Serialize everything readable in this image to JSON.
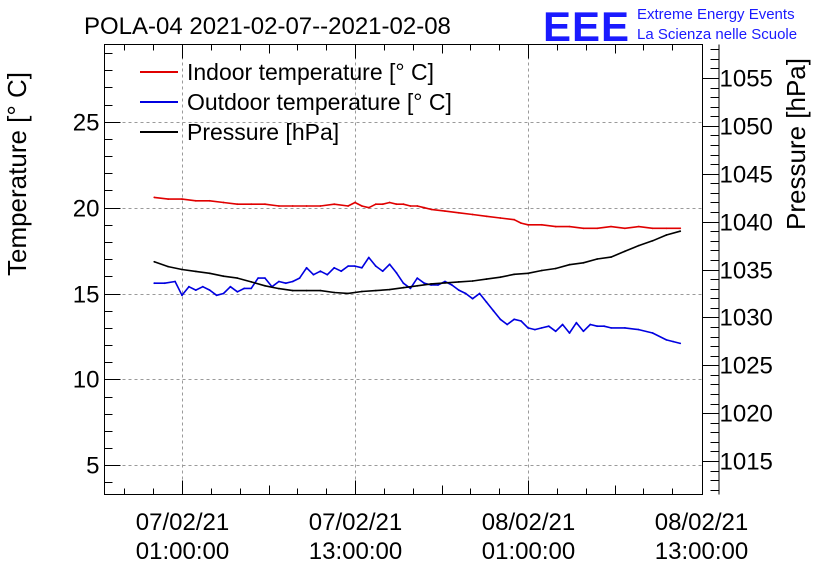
{
  "chart_data": {
    "type": "line",
    "title": "POLA-04 2021-02-07--2021-02-08",
    "logo": {
      "mark": "EEE",
      "line1": "Extreme Energy Events",
      "line2": "La Scienza nelle Scuole",
      "color": "#1a1aff"
    },
    "xlabel": "",
    "ylabel": "Temperature [° C]",
    "y2label": "Pressure [hPa]",
    "xlim": [
      -0.25,
      1.48
    ],
    "ylim": [
      3.3,
      29.5
    ],
    "y2lim": [
      1011.5,
      1058.5
    ],
    "x_ticks": [
      {
        "x": 0.0,
        "label1": "07/02/21",
        "label2": "01:00:00"
      },
      {
        "x": 0.5,
        "label1": "07/02/21",
        "label2": "13:00:00"
      },
      {
        "x": 1.0,
        "label1": "08/02/21",
        "label2": "01:00:00"
      },
      {
        "x": 1.5,
        "label1": "08/02/21",
        "label2": "13:00:00"
      }
    ],
    "y_ticks": [
      {
        "value": 5,
        "label": "5"
      },
      {
        "value": 10,
        "label": "10"
      },
      {
        "value": 15,
        "label": "15"
      },
      {
        "value": 20,
        "label": "20"
      },
      {
        "value": 25,
        "label": "25"
      }
    ],
    "y2_ticks": [
      {
        "value": 1015,
        "label": "1015"
      },
      {
        "value": 1020,
        "label": "1020"
      },
      {
        "value": 1025,
        "label": "1025"
      },
      {
        "value": 1030,
        "label": "1030"
      },
      {
        "value": 1035,
        "label": "1035"
      },
      {
        "value": 1040,
        "label": "1040"
      },
      {
        "value": 1045,
        "label": "1045"
      },
      {
        "value": 1050,
        "label": "1050"
      },
      {
        "value": 1055,
        "label": "1055"
      }
    ],
    "grid": true,
    "legend_position": "top-left",
    "series": [
      {
        "name": "Indoor temperature [° C]",
        "axis": "left",
        "color": "#e00000",
        "x": [
          -0.08,
          -0.04,
          0.0,
          0.04,
          0.08,
          0.12,
          0.16,
          0.2,
          0.24,
          0.28,
          0.32,
          0.36,
          0.4,
          0.44,
          0.48,
          0.5,
          0.52,
          0.54,
          0.56,
          0.58,
          0.6,
          0.62,
          0.64,
          0.66,
          0.68,
          0.7,
          0.72,
          0.76,
          0.8,
          0.84,
          0.88,
          0.92,
          0.96,
          0.98,
          1.0,
          1.04,
          1.08,
          1.12,
          1.16,
          1.2,
          1.24,
          1.28,
          1.32,
          1.36,
          1.4,
          1.44
        ],
        "values": [
          20.6,
          20.5,
          20.5,
          20.4,
          20.4,
          20.3,
          20.2,
          20.2,
          20.2,
          20.1,
          20.1,
          20.1,
          20.1,
          20.2,
          20.1,
          20.3,
          20.1,
          20.0,
          20.2,
          20.2,
          20.3,
          20.2,
          20.2,
          20.1,
          20.1,
          20.0,
          19.9,
          19.8,
          19.7,
          19.6,
          19.5,
          19.4,
          19.3,
          19.1,
          19.0,
          19.0,
          18.9,
          18.9,
          18.8,
          18.8,
          18.9,
          18.8,
          18.9,
          18.8,
          18.8,
          18.8
        ]
      },
      {
        "name": "Outdoor temperature [° C]",
        "axis": "left",
        "color": "#0000e0",
        "x": [
          -0.08,
          -0.05,
          -0.02,
          0.0,
          0.02,
          0.04,
          0.06,
          0.08,
          0.1,
          0.12,
          0.14,
          0.16,
          0.18,
          0.2,
          0.22,
          0.24,
          0.26,
          0.28,
          0.3,
          0.32,
          0.34,
          0.36,
          0.38,
          0.4,
          0.42,
          0.44,
          0.46,
          0.48,
          0.5,
          0.52,
          0.54,
          0.56,
          0.58,
          0.6,
          0.62,
          0.64,
          0.66,
          0.68,
          0.7,
          0.72,
          0.74,
          0.76,
          0.78,
          0.8,
          0.82,
          0.84,
          0.86,
          0.88,
          0.9,
          0.92,
          0.94,
          0.96,
          0.98,
          1.0,
          1.02,
          1.04,
          1.06,
          1.08,
          1.1,
          1.12,
          1.14,
          1.16,
          1.18,
          1.2,
          1.22,
          1.24,
          1.28,
          1.32,
          1.36,
          1.4,
          1.42,
          1.44
        ],
        "values": [
          15.6,
          15.6,
          15.7,
          14.9,
          15.4,
          15.2,
          15.4,
          15.2,
          14.9,
          15.0,
          15.4,
          15.1,
          15.3,
          15.3,
          15.9,
          15.9,
          15.4,
          15.7,
          15.6,
          15.7,
          15.9,
          16.5,
          16.1,
          16.3,
          16.1,
          16.5,
          16.3,
          16.6,
          16.6,
          16.5,
          17.1,
          16.6,
          16.3,
          16.7,
          16.2,
          15.6,
          15.3,
          15.9,
          15.6,
          15.5,
          15.5,
          15.7,
          15.5,
          15.2,
          15.0,
          14.7,
          15.0,
          14.5,
          14.0,
          13.5,
          13.2,
          13.5,
          13.4,
          13.0,
          12.9,
          13.0,
          13.1,
          12.8,
          13.2,
          12.7,
          13.3,
          12.8,
          13.2,
          13.1,
          13.1,
          13.0,
          13.0,
          12.9,
          12.7,
          12.3,
          12.2,
          12.1
        ]
      },
      {
        "name": "Pressure [hPa]",
        "axis": "right",
        "color": "#000000",
        "x": [
          -0.08,
          -0.04,
          0.0,
          0.04,
          0.08,
          0.12,
          0.16,
          0.2,
          0.24,
          0.28,
          0.32,
          0.36,
          0.4,
          0.44,
          0.48,
          0.52,
          0.56,
          0.6,
          0.64,
          0.68,
          0.72,
          0.76,
          0.8,
          0.84,
          0.88,
          0.92,
          0.96,
          1.0,
          1.04,
          1.08,
          1.12,
          1.16,
          1.2,
          1.24,
          1.28,
          1.32,
          1.36,
          1.4,
          1.44
        ],
        "values": [
          1035.8,
          1035.3,
          1035.0,
          1034.8,
          1034.6,
          1034.3,
          1034.1,
          1033.7,
          1033.3,
          1033.0,
          1032.8,
          1032.8,
          1032.8,
          1032.6,
          1032.5,
          1032.7,
          1032.8,
          1032.9,
          1033.1,
          1033.3,
          1033.5,
          1033.6,
          1033.7,
          1033.8,
          1034.0,
          1034.2,
          1034.5,
          1034.6,
          1034.9,
          1035.1,
          1035.5,
          1035.7,
          1036.1,
          1036.3,
          1036.9,
          1037.5,
          1038.0,
          1038.6,
          1039.0
        ]
      }
    ]
  }
}
